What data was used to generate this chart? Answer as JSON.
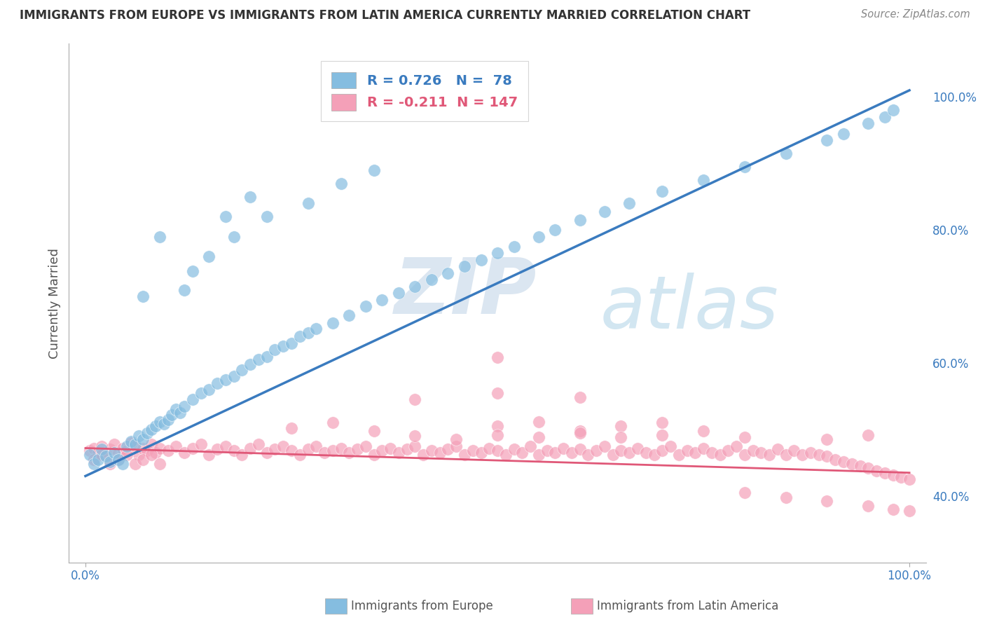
{
  "title": "IMMIGRANTS FROM EUROPE VS IMMIGRANTS FROM LATIN AMERICA CURRENTLY MARRIED CORRELATION CHART",
  "source": "Source: ZipAtlas.com",
  "ylabel": "Currently Married",
  "xlim": [
    -0.02,
    1.02
  ],
  "ylim": [
    0.3,
    1.08
  ],
  "right_yticks": [
    0.4,
    0.6,
    0.8,
    1.0
  ],
  "right_yticklabels": [
    "40.0%",
    "60.0%",
    "80.0%",
    "100.0%"
  ],
  "blue_color": "#85bde0",
  "pink_color": "#f4a0b8",
  "blue_line_color": "#3a7bbf",
  "pink_line_color": "#e05878",
  "legend_blue_label_r": "0.726",
  "legend_blue_label_n": "78",
  "legend_pink_label_r": "-0.211",
  "legend_pink_label_n": "147",
  "watermark_zip": "ZIP",
  "watermark_atlas": "atlas",
  "background_color": "#ffffff",
  "grid_color": "#d0d0d0",
  "blue_line_x0": 0.0,
  "blue_line_y0": 0.43,
  "blue_line_x1": 1.0,
  "blue_line_y1": 1.01,
  "pink_line_x0": 0.0,
  "pink_line_y0": 0.472,
  "pink_line_x1": 1.0,
  "pink_line_y1": 0.435,
  "blue_scatter_x": [
    0.005,
    0.01,
    0.015,
    0.02,
    0.025,
    0.03,
    0.035,
    0.04,
    0.045,
    0.05,
    0.055,
    0.06,
    0.065,
    0.07,
    0.075,
    0.08,
    0.085,
    0.09,
    0.095,
    0.1,
    0.105,
    0.11,
    0.115,
    0.12,
    0.13,
    0.14,
    0.15,
    0.16,
    0.17,
    0.18,
    0.19,
    0.2,
    0.21,
    0.22,
    0.23,
    0.24,
    0.25,
    0.26,
    0.27,
    0.28,
    0.3,
    0.32,
    0.34,
    0.36,
    0.38,
    0.4,
    0.42,
    0.44,
    0.46,
    0.48,
    0.5,
    0.52,
    0.55,
    0.57,
    0.6,
    0.63,
    0.66,
    0.7,
    0.75,
    0.8,
    0.85,
    0.9,
    0.92,
    0.95,
    0.97,
    0.98,
    0.13,
    0.17,
    0.2,
    0.07,
    0.09,
    0.12,
    0.15,
    0.18,
    0.22,
    0.27,
    0.31,
    0.35
  ],
  "blue_scatter_y": [
    0.462,
    0.448,
    0.455,
    0.47,
    0.46,
    0.452,
    0.465,
    0.455,
    0.448,
    0.475,
    0.482,
    0.478,
    0.49,
    0.485,
    0.495,
    0.5,
    0.505,
    0.512,
    0.508,
    0.515,
    0.522,
    0.53,
    0.525,
    0.535,
    0.545,
    0.555,
    0.56,
    0.57,
    0.575,
    0.58,
    0.59,
    0.598,
    0.605,
    0.61,
    0.62,
    0.625,
    0.63,
    0.64,
    0.645,
    0.652,
    0.66,
    0.672,
    0.685,
    0.695,
    0.705,
    0.715,
    0.725,
    0.735,
    0.745,
    0.755,
    0.765,
    0.775,
    0.79,
    0.8,
    0.815,
    0.828,
    0.84,
    0.858,
    0.875,
    0.895,
    0.915,
    0.935,
    0.945,
    0.96,
    0.97,
    0.98,
    0.738,
    0.82,
    0.85,
    0.7,
    0.79,
    0.71,
    0.76,
    0.79,
    0.82,
    0.84,
    0.87,
    0.89
  ],
  "pink_scatter_x": [
    0.005,
    0.01,
    0.015,
    0.02,
    0.025,
    0.03,
    0.035,
    0.04,
    0.045,
    0.05,
    0.055,
    0.06,
    0.065,
    0.07,
    0.075,
    0.08,
    0.085,
    0.09,
    0.1,
    0.11,
    0.12,
    0.13,
    0.14,
    0.15,
    0.16,
    0.17,
    0.18,
    0.19,
    0.2,
    0.21,
    0.22,
    0.23,
    0.24,
    0.25,
    0.26,
    0.27,
    0.28,
    0.29,
    0.3,
    0.31,
    0.32,
    0.33,
    0.34,
    0.35,
    0.36,
    0.37,
    0.38,
    0.39,
    0.4,
    0.41,
    0.42,
    0.43,
    0.44,
    0.45,
    0.46,
    0.47,
    0.48,
    0.49,
    0.5,
    0.51,
    0.52,
    0.53,
    0.54,
    0.55,
    0.56,
    0.57,
    0.58,
    0.59,
    0.6,
    0.61,
    0.62,
    0.63,
    0.64,
    0.65,
    0.66,
    0.67,
    0.68,
    0.69,
    0.7,
    0.71,
    0.72,
    0.73,
    0.74,
    0.75,
    0.76,
    0.77,
    0.78,
    0.79,
    0.8,
    0.81,
    0.82,
    0.83,
    0.84,
    0.85,
    0.86,
    0.87,
    0.88,
    0.89,
    0.9,
    0.91,
    0.92,
    0.93,
    0.94,
    0.95,
    0.96,
    0.97,
    0.98,
    0.99,
    1.0,
    0.01,
    0.02,
    0.03,
    0.04,
    0.05,
    0.06,
    0.07,
    0.08,
    0.09,
    0.25,
    0.3,
    0.35,
    0.5,
    0.55,
    0.6,
    0.65,
    0.7,
    0.75,
    0.8,
    0.85,
    0.9,
    0.95,
    1.0,
    0.4,
    0.45,
    0.5,
    0.55,
    0.6,
    0.65,
    0.7,
    0.8,
    0.9,
    0.95,
    0.98,
    0.4,
    0.5,
    0.6,
    0.5
  ],
  "pink_scatter_y": [
    0.468,
    0.472,
    0.465,
    0.475,
    0.462,
    0.47,
    0.478,
    0.465,
    0.472,
    0.468,
    0.48,
    0.475,
    0.462,
    0.472,
    0.468,
    0.478,
    0.465,
    0.472,
    0.468,
    0.475,
    0.465,
    0.472,
    0.478,
    0.462,
    0.47,
    0.475,
    0.468,
    0.462,
    0.472,
    0.478,
    0.465,
    0.47,
    0.475,
    0.468,
    0.462,
    0.47,
    0.475,
    0.465,
    0.468,
    0.472,
    0.465,
    0.47,
    0.475,
    0.462,
    0.468,
    0.472,
    0.465,
    0.47,
    0.475,
    0.462,
    0.468,
    0.465,
    0.47,
    0.475,
    0.462,
    0.468,
    0.465,
    0.472,
    0.468,
    0.462,
    0.47,
    0.465,
    0.475,
    0.462,
    0.468,
    0.465,
    0.472,
    0.465,
    0.47,
    0.462,
    0.468,
    0.475,
    0.462,
    0.468,
    0.465,
    0.472,
    0.465,
    0.462,
    0.468,
    0.475,
    0.462,
    0.468,
    0.465,
    0.472,
    0.465,
    0.462,
    0.468,
    0.475,
    0.462,
    0.468,
    0.465,
    0.462,
    0.47,
    0.462,
    0.468,
    0.462,
    0.465,
    0.462,
    0.46,
    0.455,
    0.452,
    0.448,
    0.445,
    0.442,
    0.438,
    0.435,
    0.432,
    0.428,
    0.425,
    0.455,
    0.462,
    0.448,
    0.455,
    0.462,
    0.448,
    0.455,
    0.462,
    0.448,
    0.502,
    0.51,
    0.498,
    0.505,
    0.512,
    0.498,
    0.505,
    0.51,
    0.498,
    0.405,
    0.398,
    0.392,
    0.385,
    0.378,
    0.49,
    0.485,
    0.492,
    0.488,
    0.495,
    0.488,
    0.492,
    0.488,
    0.485,
    0.492,
    0.38,
    0.545,
    0.555,
    0.548,
    0.608
  ]
}
